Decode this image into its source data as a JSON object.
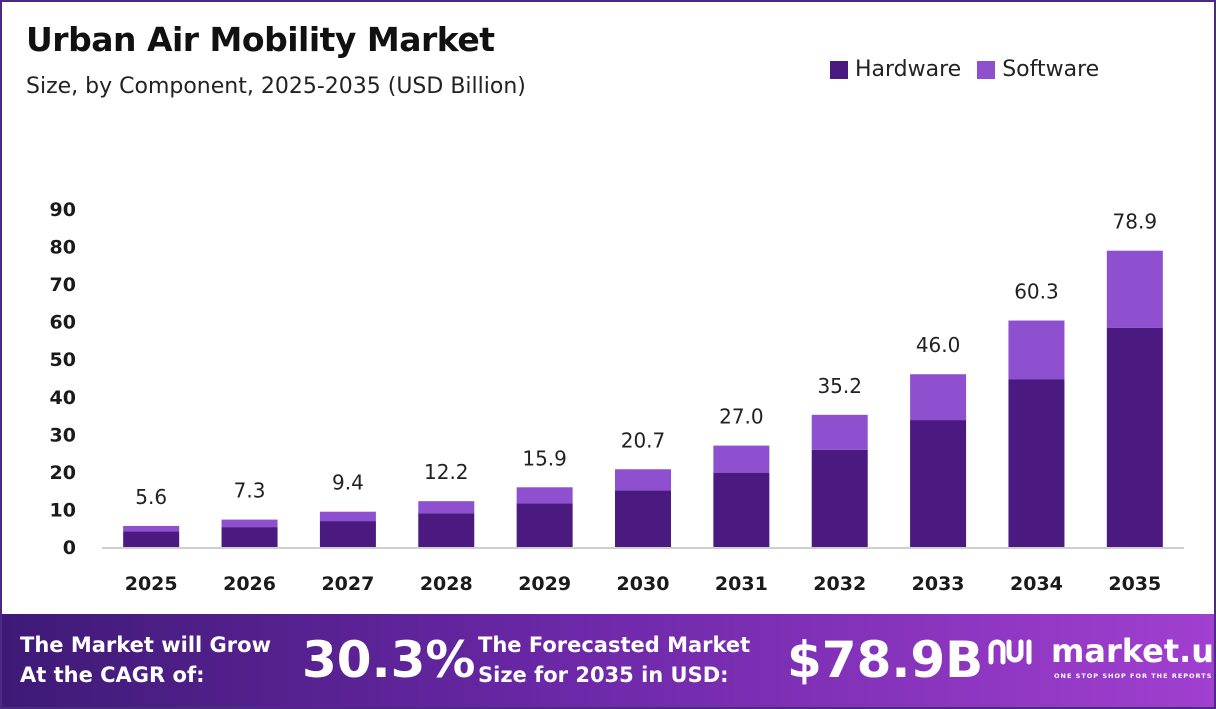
{
  "header": {
    "title": "Urban Air Mobility Market",
    "subtitle": "Size, by Component, 2025-2035 (USD Billion)"
  },
  "legend": [
    {
      "label": "Hardware",
      "color": "#4a1a80"
    },
    {
      "label": "Software",
      "color": "#8e50cf"
    }
  ],
  "chart_data": {
    "type": "bar",
    "stacked": true,
    "categories": [
      "2025",
      "2026",
      "2027",
      "2028",
      "2029",
      "2030",
      "2031",
      "2032",
      "2033",
      "2034",
      "2035"
    ],
    "series": [
      {
        "name": "Hardware",
        "color": "#4a1a80",
        "values": [
          4.2,
          5.3,
          6.9,
          9.0,
          11.6,
          15.1,
          19.8,
          25.9,
          33.8,
          44.6,
          58.4
        ]
      },
      {
        "name": "Software",
        "color": "#8e50cf",
        "values": [
          1.4,
          2.0,
          2.5,
          3.2,
          4.3,
          5.6,
          7.2,
          9.3,
          12.2,
          15.7,
          20.5
        ]
      }
    ],
    "totals": [
      "5.6",
      "7.3",
      "9.4",
      "12.2",
      "15.9",
      "20.7",
      "27.0",
      "35.2",
      "46.0",
      "60.3",
      "78.9"
    ],
    "yticks": [
      0,
      10,
      20,
      30,
      40,
      50,
      60,
      70,
      80,
      90
    ],
    "ylim": [
      0,
      90
    ],
    "xlabel": "",
    "ylabel": "",
    "grid": false,
    "legend_position": "top-right"
  },
  "banner": {
    "cagr_label_line1": "The Market will Grow",
    "cagr_label_line2": "At the CAGR of:",
    "cagr_value": "30.3%",
    "forecast_label_line1": "The Forecasted Market",
    "forecast_label_line2": "Size for 2035 in USD:",
    "forecast_value": "$78.9B",
    "brand": "market.us",
    "tagline": "ONE STOP SHOP FOR THE REPORTS"
  }
}
